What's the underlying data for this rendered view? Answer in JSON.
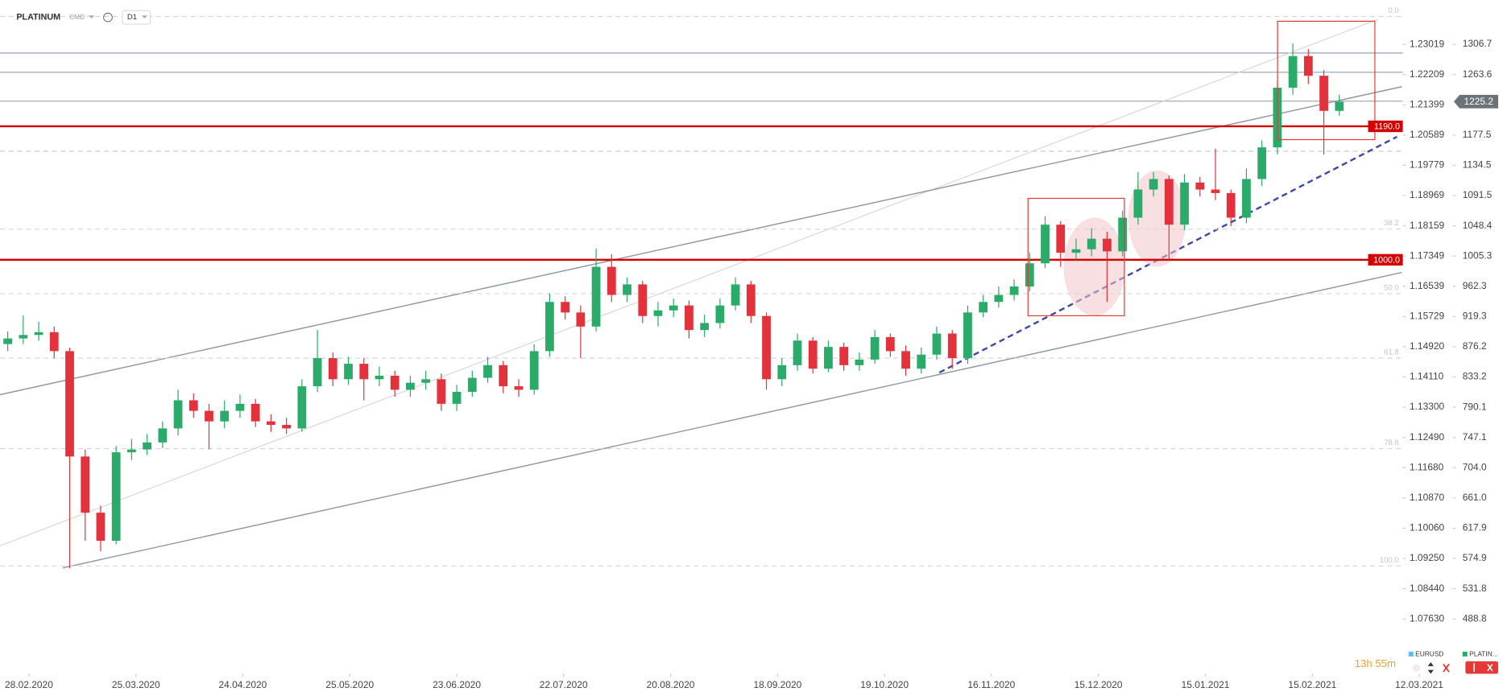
{
  "chart_data": {
    "type": "candlestick",
    "symbol": "PLATINUM",
    "market": "CMD",
    "interval": "D1",
    "categories_ticks": true,
    "xlim": [
      -0.5,
      90.1
    ],
    "xticks": [
      {
        "value": 1.37,
        "label": "28.02.2020"
      },
      {
        "value": 8.28,
        "label": "25.03.2020"
      },
      {
        "value": 15.18,
        "label": "24.04.2020"
      },
      {
        "value": 22.09,
        "label": "25.05.2020"
      },
      {
        "value": 29.0,
        "label": "23.06.2020"
      },
      {
        "value": 35.9,
        "label": "22.07.2020"
      },
      {
        "value": 42.81,
        "label": "20.08.2020"
      },
      {
        "value": 49.72,
        "label": "18.09.2020"
      },
      {
        "value": 56.63,
        "label": "19.10.2020"
      },
      {
        "value": 63.53,
        "label": "16.11.2020"
      },
      {
        "value": 70.44,
        "label": "15.12.2020"
      },
      {
        "value": 77.35,
        "label": "15.01.2021"
      },
      {
        "value": 84.26,
        "label": "15.02.2021"
      },
      {
        "value": 91.16,
        "label": "12.03.2021"
      }
    ],
    "ylim": [
      424.4,
      1369.7
    ],
    "yticks": [
      1306.7,
      1263.6,
      1177.5,
      1134.5,
      1091.5,
      1048.4,
      1005.3,
      962.3,
      919.3,
      876.2,
      833.2,
      790.1,
      747.1,
      {
        "value": 704,
        "label": "704.0"
      },
      {
        "value": 661,
        "label": "661.0"
      },
      617.9,
      574.9,
      531.8,
      488.8
    ],
    "y2lim": [
      1.06418,
      1.24205
    ],
    "y2ticks": [
      1.23019,
      1.22209,
      1.21399,
      1.20589,
      1.19779,
      1.18969,
      1.18159,
      1.17349,
      1.16539,
      1.15729,
      {
        "value": 1.1492,
        "label": "1.14920"
      },
      {
        "value": 1.1411,
        "label": "1.14110"
      },
      {
        "value": 1.133,
        "label": "1.13300"
      },
      {
        "value": 1.1249,
        "label": "1.12490"
      },
      {
        "value": 1.1168,
        "label": "1.11680"
      },
      {
        "value": 1.1087,
        "label": "1.10870"
      },
      {
        "value": 1.1006,
        "label": "1.10060"
      },
      {
        "value": 1.0925,
        "label": "1.09250"
      },
      {
        "value": 1.0844,
        "label": "1.08440"
      },
      {
        "value": 1.0763,
        "label": "1.07630"
      }
    ],
    "last_price": 1225.2,
    "levels": [
      {
        "value": 1190,
        "label": "1190.0",
        "color": "#d50000"
      },
      {
        "value": 1000,
        "label": "1000.0",
        "color": "#d50000"
      }
    ],
    "fib_levels": [
      {
        "value": 1346.4,
        "label": "0.0"
      },
      {
        "value": 1043.6,
        "label": "38.2"
      },
      {
        "value": 951.8,
        "label": "50.0"
      },
      {
        "value": 860.0,
        "label": "61.8"
      },
      {
        "value": 731.3,
        "label": "78.6"
      },
      {
        "value": 564.1,
        "label": "100.0"
      }
    ],
    "timer": "13h 55m",
    "up_color": "#2bab6a",
    "down_color": "#e3323b",
    "series": [
      {
        "name": "EURUSD",
        "color": "#4fc3f7",
        "axis": "y2"
      },
      {
        "name": "PLATIN...",
        "color": "#2bab6a",
        "open": [
          880,
          888,
          893,
          897,
          870,
          720,
          640,
          600,
          726,
          730,
          740,
          760,
          800,
          785,
          770,
          785,
          795,
          770,
          765,
          760,
          820,
          860,
          830,
          852,
          830,
          835,
          815,
          825,
          830,
          795,
          812,
          832,
          850,
          820,
          815,
          870,
          940,
          925,
          905,
          990,
          950,
          965,
          920,
          928,
          935,
          900,
          910,
          935,
          965,
          920,
          830,
          850,
          885,
          845,
          876,
          850,
          858,
          890,
          870,
          845,
          865,
          895,
          860,
          925,
          940,
          950,
          962,
          995,
          1050,
          1010,
          1015,
          1030,
          1012,
          1060,
          1100,
          1115,
          1050,
          1110,
          1100,
          1095,
          1060,
          1115,
          1160,
          1245,
          1290,
          1262,
          1212
        ],
        "high": [
          898,
          921,
          912,
          905,
          875,
          730,
          650,
          735,
          745,
          752,
          770,
          815,
          810,
          795,
          800,
          808,
          802,
          780,
          775,
          830,
          900,
          868,
          862,
          860,
          848,
          842,
          835,
          842,
          838,
          822,
          842,
          862,
          856,
          830,
          880,
          952,
          948,
          935,
          1016,
          1008,
          975,
          970,
          940,
          945,
          942,
          922,
          945,
          975,
          970,
          925,
          860,
          895,
          890,
          885,
          882,
          868,
          900,
          895,
          878,
          875,
          905,
          900,
          935,
          950,
          962,
          972,
          1010,
          1062,
          1055,
          1030,
          1045,
          1040,
          1070,
          1125,
          1125,
          1120,
          1122,
          1118,
          1158,
          1100,
          1130,
          1170,
          1255,
          1308,
          1300,
          1270,
          1235
        ],
        "low": [
          870,
          880,
          885,
          860,
          561,
          600,
          585,
          595,
          715,
          722,
          732,
          750,
          775,
          730,
          760,
          775,
          762,
          755,
          752,
          755,
          812,
          820,
          822,
          800,
          820,
          805,
          805,
          815,
          785,
          785,
          805,
          825,
          810,
          805,
          808,
          862,
          915,
          860,
          898,
          940,
          940,
          910,
          905,
          918,
          888,
          890,
          902,
          928,
          910,
          815,
          820,
          842,
          838,
          840,
          842,
          842,
          852,
          862,
          835,
          838,
          858,
          845,
          852,
          918,
          932,
          942,
          955,
          988,
          990,
          1000,
          1005,
          940,
          1005,
          1050,
          1090,
          1000,
          1042,
          1090,
          1085,
          1048,
          1052,
          1105,
          1150,
          1235,
          1250,
          1150,
          1205
        ],
        "close": [
          888,
          893,
          897,
          870,
          720,
          640,
          600,
          726,
          730,
          740,
          760,
          800,
          785,
          770,
          785,
          795,
          770,
          765,
          760,
          820,
          860,
          830,
          852,
          830,
          835,
          815,
          825,
          830,
          795,
          812,
          832,
          850,
          820,
          815,
          870,
          940,
          925,
          905,
          990,
          950,
          965,
          920,
          928,
          935,
          900,
          910,
          935,
          965,
          920,
          830,
          850,
          885,
          845,
          876,
          850,
          858,
          890,
          870,
          845,
          865,
          895,
          860,
          925,
          940,
          950,
          962,
          995,
          1050,
          1010,
          1015,
          1030,
          1012,
          1060,
          1100,
          1115,
          1050,
          1110,
          1100,
          1095,
          1060,
          1115,
          1160,
          1245,
          1290,
          1262,
          1212,
          1225
        ]
      }
    ]
  }
}
